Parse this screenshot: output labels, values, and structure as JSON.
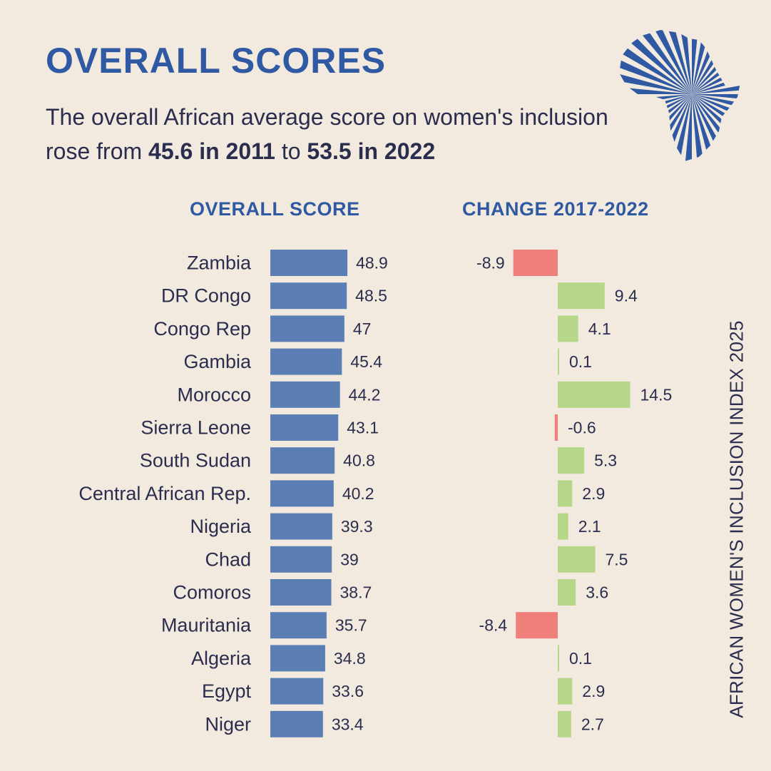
{
  "header": {
    "title": "OVERALL SCORES",
    "subtitle_part1": "The overall African average score on women's inclusion rose from ",
    "subtitle_bold1": "45.6 in 2011",
    "subtitle_part2": " to ",
    "subtitle_bold2": "53.5 in 2022"
  },
  "side_label": "AFRICAN WOMEN'S INCLUSION INDEX 2025",
  "logo": {
    "icon": "africa-map-icon",
    "color": "#2f5aa3"
  },
  "colors": {
    "score_bar": "#5b7fb4",
    "positive_change": "#b6d78a",
    "negative_change": "#ee7f7b",
    "text": "#2a2d4e",
    "heading": "#2f5aa3",
    "background": "#f3eadf"
  },
  "chart_data": {
    "type": "bar",
    "categories": [
      "Zambia",
      "DR Congo",
      "Congo Rep",
      "Gambia",
      "Morocco",
      "Sierra Leone",
      "South Sudan",
      "Central African Rep.",
      "Nigeria",
      "Chad",
      "Comoros",
      "Mauritania",
      "Algeria",
      "Egypt",
      "Niger"
    ],
    "series": [
      {
        "name": "OVERALL SCORE",
        "values": [
          48.9,
          48.5,
          47,
          45.4,
          44.2,
          43.1,
          40.8,
          40.2,
          39.3,
          39,
          38.7,
          35.7,
          34.8,
          33.6,
          33.4
        ]
      },
      {
        "name": "CHANGE 2017-2022",
        "values": [
          -8.9,
          9.4,
          4.1,
          0.1,
          14.5,
          -0.6,
          5.3,
          2.9,
          2.1,
          7.5,
          3.6,
          -8.4,
          0.1,
          2.9,
          2.7
        ]
      }
    ],
    "value_labels": {
      "score": [
        "48.9",
        "48.5",
        "47",
        "45.4",
        "44.2",
        "43.1",
        "40.8",
        "40.2",
        "39.3",
        "39",
        "38.7",
        "35.7",
        "34.8",
        "33.6",
        "33.4"
      ],
      "change": [
        "-8.9",
        "9.4",
        "4.1",
        "0.1",
        "14.5",
        "-0.6",
        "5.3",
        "2.9",
        "2.1",
        "7.5",
        "3.6",
        "-8.4",
        "0.1",
        "2.9",
        "2.7"
      ]
    }
  }
}
